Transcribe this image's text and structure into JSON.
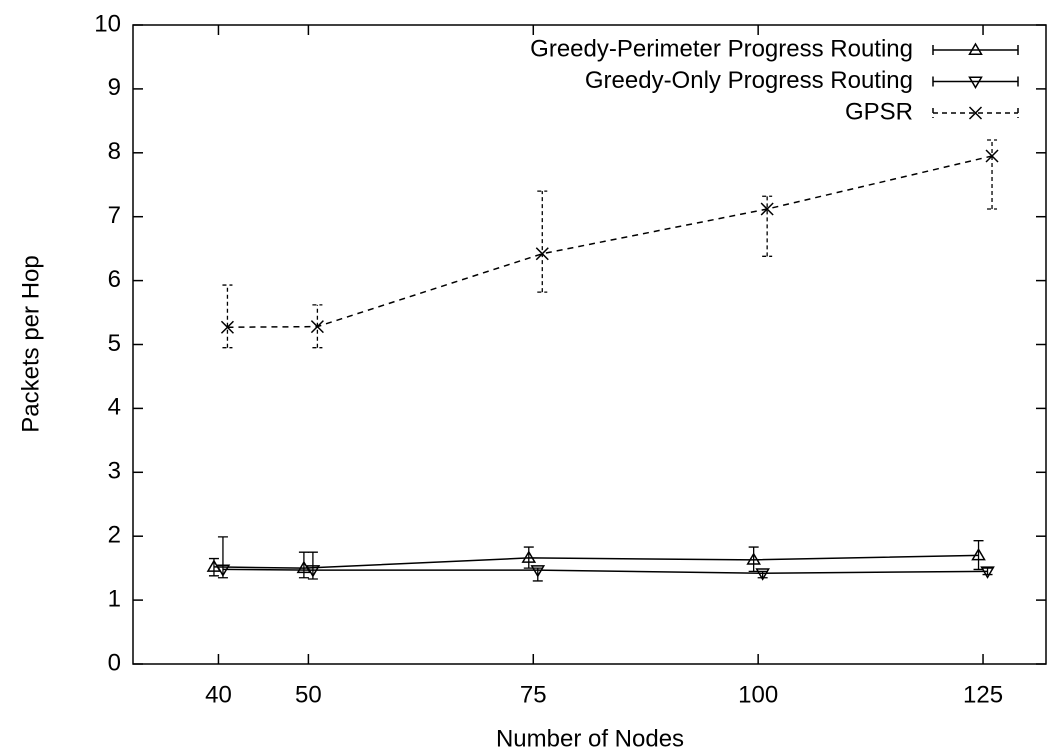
{
  "chart_data": {
    "type": "line",
    "xlabel": "Number of Nodes",
    "ylabel": "Packets per Hop",
    "xlim": [
      30.5,
      132
    ],
    "xticks": [
      40,
      50,
      75,
      100,
      125
    ],
    "ylim": [
      0,
      10
    ],
    "yticks": [
      0,
      1,
      2,
      3,
      4,
      5,
      6,
      7,
      8,
      9,
      10
    ],
    "legend": "top-right",
    "series": [
      {
        "name": "Greedy-Perimeter Progress Routing",
        "color": "#000000",
        "marker": "triangle-up",
        "dash": false,
        "x": [
          39.5,
          49.5,
          74.5,
          99.5,
          124.5
        ],
        "values": [
          1.52,
          1.5,
          1.66,
          1.63,
          1.7
        ],
        "low": [
          1.38,
          1.35,
          1.5,
          1.45,
          1.48
        ],
        "high": [
          1.65,
          1.75,
          1.83,
          1.83,
          1.93
        ]
      },
      {
        "name": "Greedy-Only Progress Routing",
        "color": "#000000",
        "marker": "triangle-down",
        "dash": false,
        "x": [
          40.5,
          50.5,
          75.5,
          100.5,
          125.5
        ],
        "values": [
          1.48,
          1.47,
          1.47,
          1.42,
          1.45
        ],
        "low": [
          1.35,
          1.33,
          1.3,
          1.35,
          1.4
        ],
        "high": [
          1.99,
          1.75,
          1.5,
          1.45,
          1.5
        ]
      },
      {
        "name": "GPSR",
        "color": "#000000",
        "marker": "cross",
        "dash": true,
        "x": [
          41,
          51,
          76,
          101,
          126
        ],
        "values": [
          5.27,
          5.28,
          6.42,
          7.12,
          7.95
        ],
        "low": [
          4.95,
          4.95,
          5.82,
          6.38,
          7.12
        ],
        "high": [
          5.93,
          5.62,
          7.4,
          7.32,
          8.2
        ]
      }
    ]
  }
}
